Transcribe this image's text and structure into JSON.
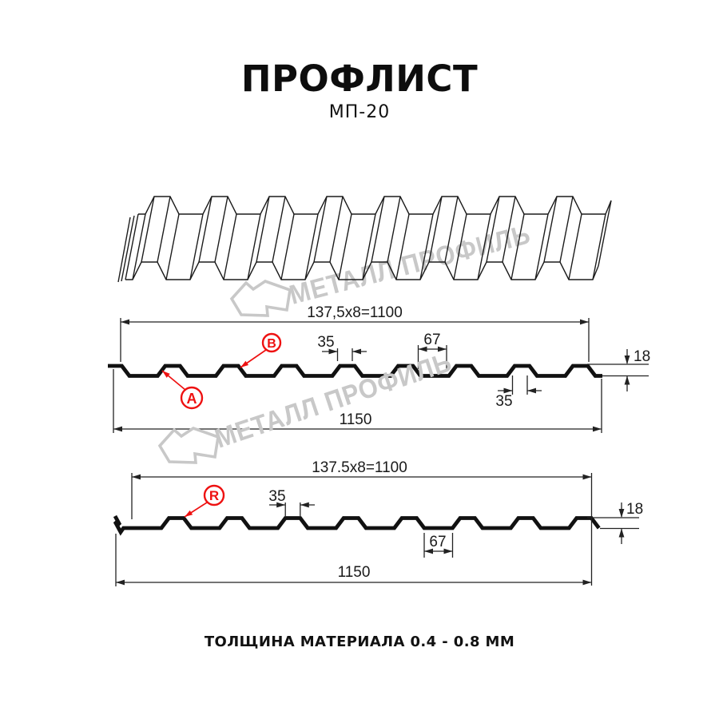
{
  "page": {
    "title": "ПРОФЛИСТ",
    "subtitle": "МП-20",
    "footer": "ТОЛЩИНА МАТЕРИАЛА 0.4 - 0.8 ММ"
  },
  "watermark": {
    "text": "МЕТАЛЛ ПРОФИЛЬ",
    "color": "#c8c8c8"
  },
  "colors": {
    "ink": "#1a1a1a",
    "profile_stroke": "#111111",
    "red": "#ee1111"
  },
  "diagrams": [
    {
      "pitch_label": "137,5x8=1100",
      "total_width": "1150",
      "crest_width": "35",
      "valley_width": "67",
      "profile_height": "18",
      "crest_width_bottom": "35",
      "callouts": {
        "a": "А",
        "b": "В"
      }
    },
    {
      "pitch_label": "137.5x8=1100",
      "total_width": "1150",
      "crest_width": "35",
      "valley_width": "67",
      "profile_height": "18",
      "callouts": {
        "r": "R"
      }
    }
  ]
}
